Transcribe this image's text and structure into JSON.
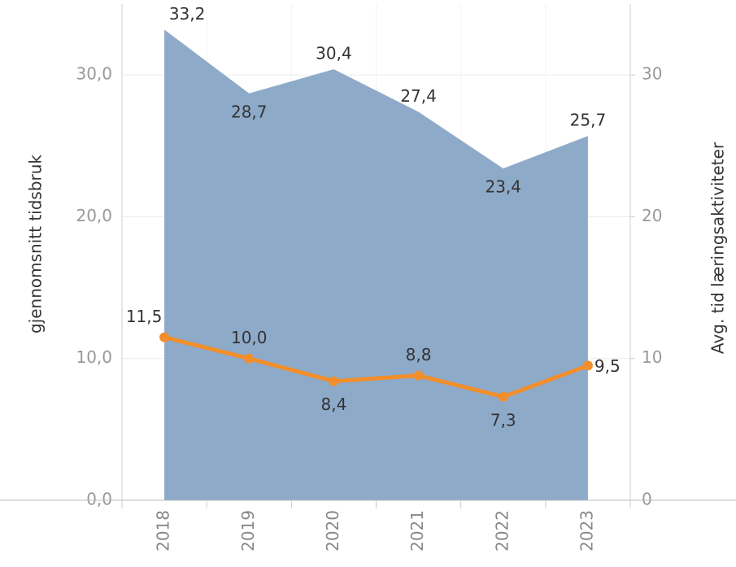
{
  "chart_data": {
    "type": "combo",
    "ylabel": "gjennomsnitt tidsbruk",
    "y2label": "Avg. tid læringsaktiviteter",
    "categories": [
      "2018",
      "2019",
      "2020",
      "2021",
      "2022",
      "2023"
    ],
    "series": [
      {
        "type": "area",
        "axis": "y2",
        "color": "#8eaac9",
        "values": [
          33.2,
          28.7,
          30.4,
          27.4,
          23.4,
          25.7
        ],
        "value_labels": [
          "33,2",
          "28,7",
          "30,4",
          "27,4",
          "23,4",
          "25,7"
        ]
      },
      {
        "type": "line",
        "color": "#f28e2b",
        "values": [
          11.5,
          10.0,
          8.4,
          8.8,
          7.3,
          9.5
        ],
        "value_labels": [
          "11,5",
          "10,0",
          "8,4",
          "8,8",
          "7,3",
          "9,5"
        ]
      }
    ],
    "ylim": [
      0,
      35
    ],
    "yticks": [
      {
        "value": 0,
        "label": "0,0"
      },
      {
        "value": 10,
        "label": "10,0"
      },
      {
        "value": 20,
        "label": "20,0"
      },
      {
        "value": 30,
        "label": "30,0"
      }
    ],
    "y2lim": [
      0,
      35
    ],
    "y2ticks": [
      0,
      10,
      20,
      30
    ],
    "grid": true
  }
}
